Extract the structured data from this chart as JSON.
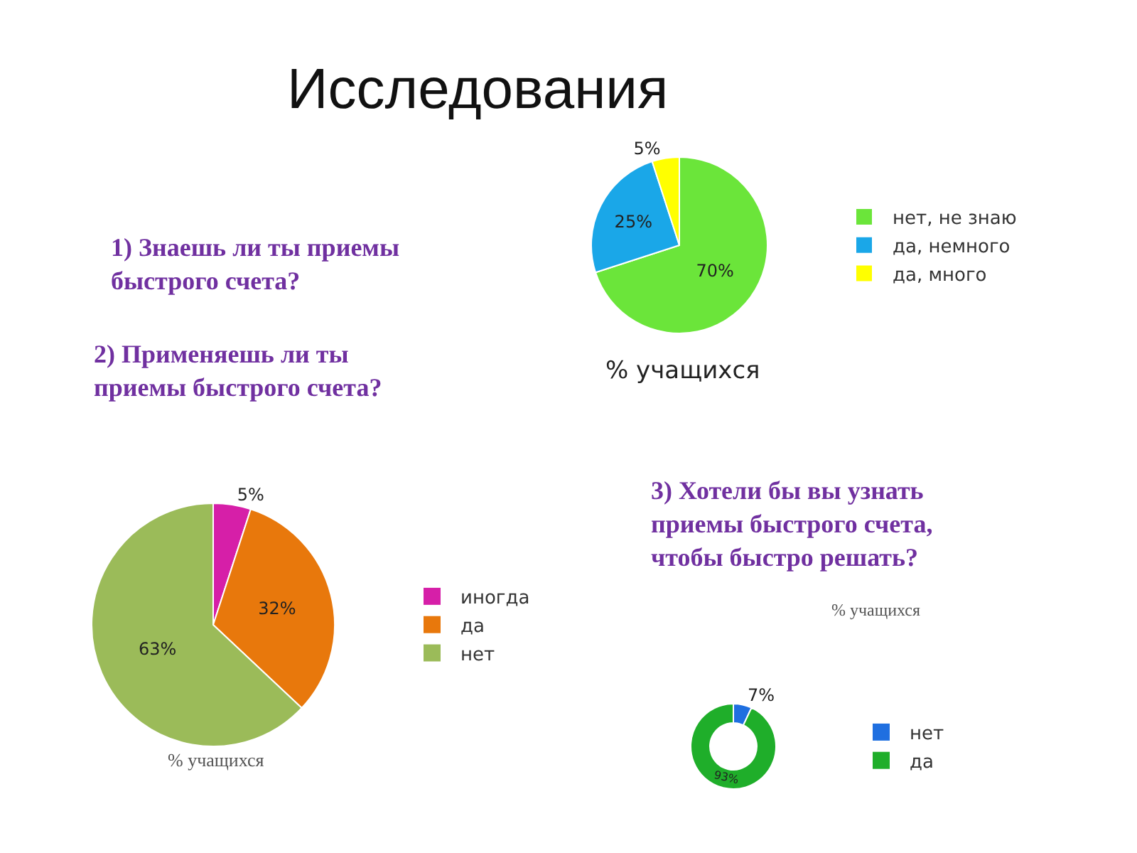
{
  "chart_data": [
    {
      "type": "pie",
      "title": "% учащихся",
      "annotations": [
        "Исследования",
        "1) Знаешь ли ты приемы\nбыстрого счета?"
      ],
      "categories": [
        "нет, не знаю",
        "да, немного",
        "да, много"
      ],
      "values": [
        70,
        25,
        5
      ],
      "colors": [
        "#6be53a",
        "#1aa7e8",
        "#ffff00"
      ],
      "value_labels": [
        "70%",
        "25%",
        "5%"
      ],
      "legend": "right"
    },
    {
      "type": "pie",
      "title": "% учащихся",
      "annotations": [
        "2) Применяешь ли ты\nприемы быстрого счета?"
      ],
      "categories": [
        "иногда",
        "да",
        "нет"
      ],
      "values": [
        5,
        32,
        63
      ],
      "colors": [
        "#d61fa8",
        "#e8780c",
        "#9bbb59"
      ],
      "value_labels": [
        "5%",
        "32%",
        "63%"
      ],
      "legend": "right"
    },
    {
      "type": "donut",
      "title": "% учащихся",
      "annotations": [
        "3) Хотели бы вы узнать\nприемы быстрого счета,\nчтобы быстро решать?"
      ],
      "categories": [
        "нет",
        "да"
      ],
      "values": [
        7,
        93
      ],
      "colors": [
        "#1f6fe0",
        "#1fae2a"
      ],
      "value_labels": [
        "7%",
        "93%"
      ],
      "legend": "right"
    }
  ]
}
